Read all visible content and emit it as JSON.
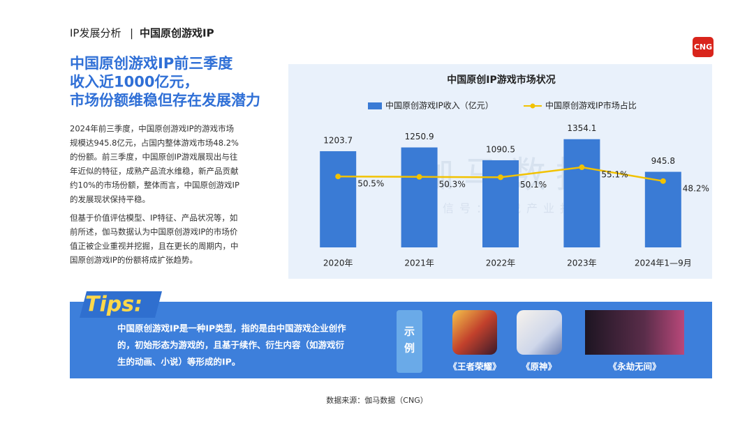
{
  "header": {
    "section": "IP发展分析",
    "separator": "|",
    "topic": "中国原创游戏IP",
    "logo": "CNG"
  },
  "headline": [
    "中国原创游戏IP前三季度",
    "收入近1000亿元，",
    "市场份额维稳但存在发展潜力"
  ],
  "body": [
    [
      "2024年前三季度，中国原创游戏IP的游戏市场",
      "规模达945.8亿元，占国内整体游戏市场48.2%",
      "的份额。前三季度，中国原创IP游戏展现出与往",
      "年近似的特征，成熟产品流水维稳，新产品贡献",
      "约10%的市场份额，整体而言，中国原创游戏IP",
      "的发展现状保持平稳。"
    ],
    [
      "但基于价值评估模型、IP特征、产品状况等，如",
      "前所述，伽马数据认为中国原创游戏IP的市场价",
      "值正被企业重视并挖掘，且在更长的周期内，中",
      "国原创游戏IP的份额将成扩张趋势。"
    ]
  ],
  "chart_data": {
    "type": "bar",
    "title": "中国原创IP游戏市场状况",
    "categories": [
      "2020年",
      "2021年",
      "2022年",
      "2023年",
      "2024年1—9月"
    ],
    "series": [
      {
        "name": "中国原创游戏IP收入（亿元）",
        "type": "bar",
        "color": "#3a7bd5",
        "values": [
          1203.7,
          1250.9,
          1090.5,
          1354.1,
          945.8
        ]
      },
      {
        "name": "中国原创游戏IP市场占比",
        "type": "line",
        "axis": "y2",
        "color": "#f2c200",
        "values": [
          50.5,
          50.3,
          50.1,
          55.1,
          48.2
        ],
        "value_labels": [
          "50.5%",
          "50.3%",
          "50.1%",
          "55.1%",
          "48.2%"
        ]
      }
    ],
    "ylim": [
      0,
      1500
    ],
    "y2lim": [
      15,
      75
    ],
    "watermark": "伽马数据",
    "watermark_sub": "微信号：游戏产业报告"
  },
  "tips": {
    "title": "Tips:",
    "text": [
      "中国原创游戏IP是一种IP类型，指的是由中国游戏企业创作",
      "的，初始形态为游戏的，且基于续作、衍生内容（如游戏衍",
      "生的动画、小说）等形成的IP。"
    ],
    "example_label": [
      "示",
      "例"
    ],
    "examples": [
      "《王者荣耀》",
      "《原神》",
      "《永劫无间》"
    ]
  },
  "source": "数据来源：伽马数据（CNG）"
}
